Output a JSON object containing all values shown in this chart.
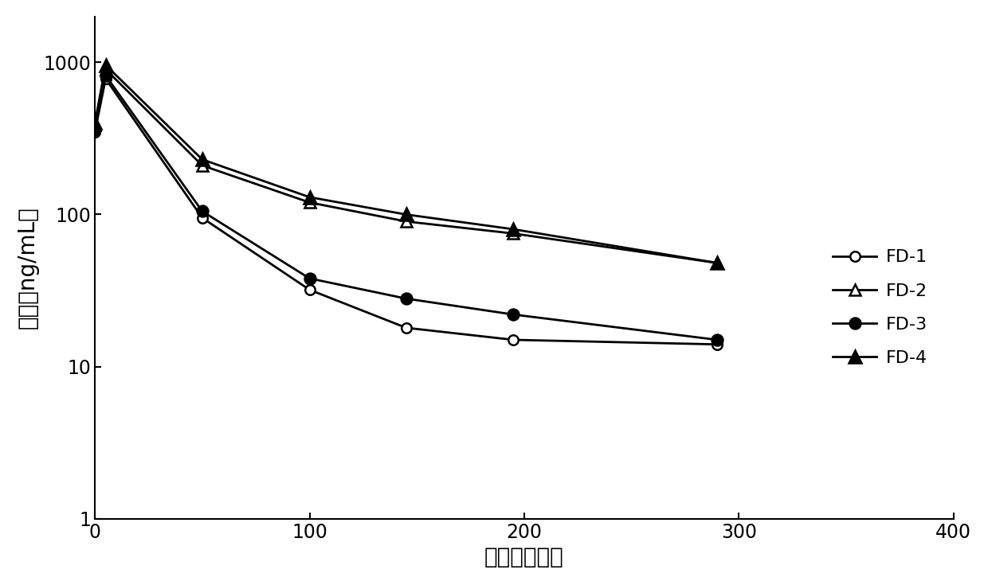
{
  "series": [
    {
      "label": "FD-1",
      "x": [
        0,
        5,
        50,
        100,
        145,
        195,
        290
      ],
      "y": [
        350,
        780,
        95,
        32,
        18,
        15,
        14
      ],
      "marker": "o",
      "marker_fill": "white",
      "linestyle": "-",
      "color": "black",
      "markersize": 9
    },
    {
      "label": "FD-2",
      "x": [
        0,
        5,
        50,
        100,
        145,
        195,
        290
      ],
      "y": [
        390,
        900,
        210,
        120,
        90,
        75,
        48
      ],
      "marker": "^",
      "marker_fill": "white",
      "linestyle": "-",
      "color": "black",
      "markersize": 10
    },
    {
      "label": "FD-3",
      "x": [
        0,
        5,
        50,
        100,
        145,
        195,
        290
      ],
      "y": [
        360,
        820,
        105,
        38,
        28,
        22,
        15
      ],
      "marker": "o",
      "marker_fill": "black",
      "linestyle": "-",
      "color": "black",
      "markersize": 10
    },
    {
      "label": "FD-4",
      "x": [
        0,
        5,
        50,
        100,
        145,
        195,
        290
      ],
      "y": [
        400,
        960,
        230,
        130,
        100,
        80,
        48
      ],
      "marker": "^",
      "marker_fill": "black",
      "linestyle": "-",
      "color": "black",
      "markersize": 11
    }
  ],
  "xlabel": "时间（小时）",
  "ylabel": "浓度（ng/mL）",
  "xlim": [
    0,
    400
  ],
  "ylim": [
    1,
    2000
  ],
  "xticks": [
    0,
    100,
    200,
    300,
    400
  ],
  "yticks": [
    1,
    10,
    100,
    1000
  ],
  "background_color": "#ffffff",
  "xlabel_fontsize": 20,
  "ylabel_fontsize": 20,
  "tick_fontsize": 17,
  "legend_fontsize": 16
}
